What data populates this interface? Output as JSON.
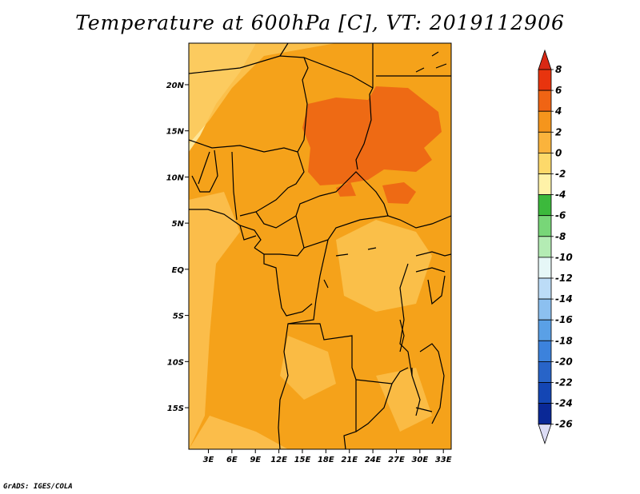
{
  "title": "Temperature at 600hPa [C], VT: 2019112906",
  "credit": "GrADS: IGES/COLA",
  "map": {
    "lat_labels": [
      "20N",
      "15N",
      "10N",
      "5N",
      "EQ",
      "5S",
      "10S",
      "15S"
    ],
    "lat_values": [
      20,
      15,
      10,
      5,
      0,
      -5,
      -10,
      -15
    ],
    "lon_labels": [
      "3E",
      "6E",
      "9E",
      "12E",
      "15E",
      "18E",
      "21E",
      "24E",
      "27E",
      "30E",
      "33E"
    ],
    "lon_values": [
      3,
      6,
      9,
      12,
      15,
      18,
      21,
      24,
      27,
      30,
      33
    ],
    "lon_range": [
      0.5,
      34
    ],
    "lat_range": [
      -19.5,
      24.5
    ]
  },
  "colorbar": {
    "levels": [
      "8",
      "6",
      "4",
      "2",
      "0",
      "-2",
      "-4",
      "-6",
      "-8",
      "-10",
      "-12",
      "-14",
      "-16",
      "-18",
      "-20",
      "-22",
      "-24",
      "-26"
    ],
    "colors": [
      "#e8340e",
      "#f06414",
      "#f5951c",
      "#fab33c",
      "#fdd96a",
      "#fff2a8",
      "#3cb93c",
      "#78d678",
      "#b4ecb4",
      "#e6f7f7",
      "#bcdcf7",
      "#8cc0f0",
      "#5aa0e6",
      "#3c82dc",
      "#2864c8",
      "#1446b4",
      "#0a2896"
    ],
    "top_color": "#d92814",
    "bottom_color": "#dcdcf5"
  }
}
